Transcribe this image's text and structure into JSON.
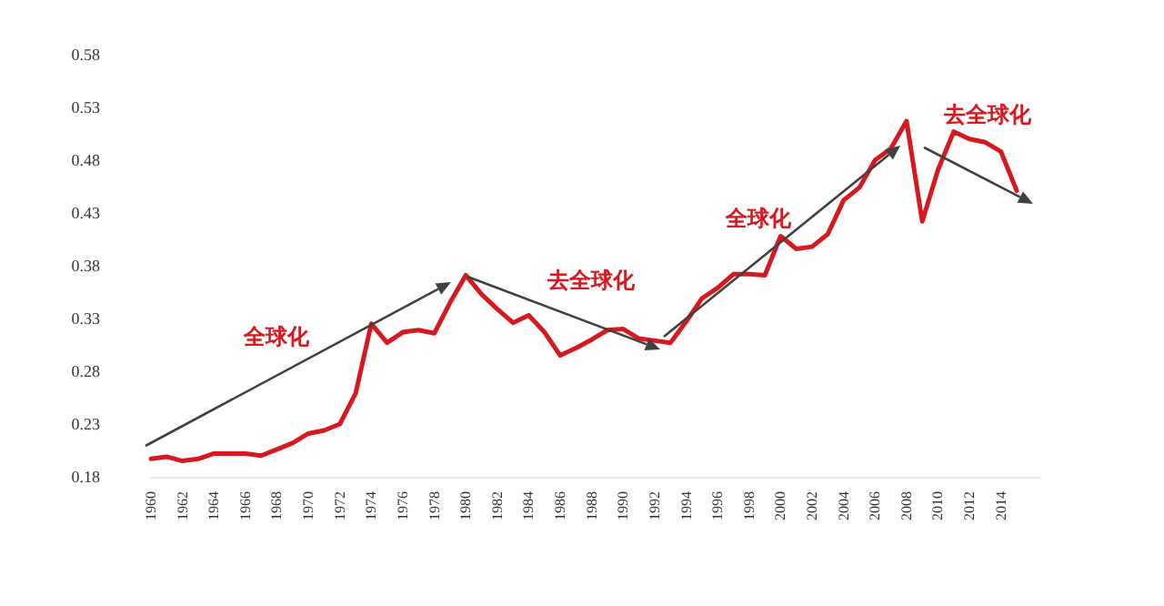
{
  "chart_data": {
    "type": "line",
    "x": [
      1960,
      1961,
      1962,
      1963,
      1964,
      1965,
      1966,
      1967,
      1968,
      1969,
      1970,
      1971,
      1972,
      1973,
      1974,
      1975,
      1976,
      1977,
      1978,
      1979,
      1980,
      1981,
      1982,
      1983,
      1984,
      1985,
      1986,
      1987,
      1988,
      1989,
      1990,
      1991,
      1992,
      1993,
      1994,
      1995,
      1996,
      1997,
      1998,
      1999,
      2000,
      2001,
      2002,
      2003,
      2004,
      2005,
      2006,
      2007,
      2008,
      2009,
      2010,
      2011,
      2012,
      2013,
      2014,
      2015
    ],
    "series": [
      {
        "color": "#d7191f",
        "values": [
          0.197,
          0.199,
          0.195,
          0.197,
          0.202,
          0.202,
          0.202,
          0.2,
          0.206,
          0.212,
          0.221,
          0.224,
          0.23,
          0.259,
          0.325,
          0.307,
          0.317,
          0.319,
          0.316,
          0.345,
          0.371,
          0.353,
          0.339,
          0.326,
          0.333,
          0.317,
          0.295,
          0.302,
          0.31,
          0.319,
          0.32,
          0.311,
          0.309,
          0.307,
          0.327,
          0.349,
          0.359,
          0.372,
          0.372,
          0.371,
          0.408,
          0.396,
          0.398,
          0.41,
          0.442,
          0.454,
          0.48,
          0.491,
          0.517,
          0.422,
          0.471,
          0.507,
          0.5,
          0.497,
          0.488,
          0.451
        ]
      }
    ],
    "xlim": [
      1960,
      2016.5
    ],
    "xticks": [
      1960,
      1962,
      1964,
      1966,
      1968,
      1970,
      1972,
      1974,
      1976,
      1978,
      1980,
      1982,
      1984,
      1986,
      1988,
      1990,
      1992,
      1994,
      1996,
      1998,
      2000,
      2002,
      2004,
      2006,
      2008,
      2010,
      2012,
      2014
    ],
    "ylim": [
      0.18,
      0.58
    ],
    "yticks": [
      0.18,
      0.23,
      0.28,
      0.33,
      0.38,
      0.43,
      0.48,
      0.53,
      0.58
    ],
    "marker": "none",
    "annotations": [
      "全球化",
      "去全球化",
      "全球化",
      "去全球化"
    ]
  }
}
